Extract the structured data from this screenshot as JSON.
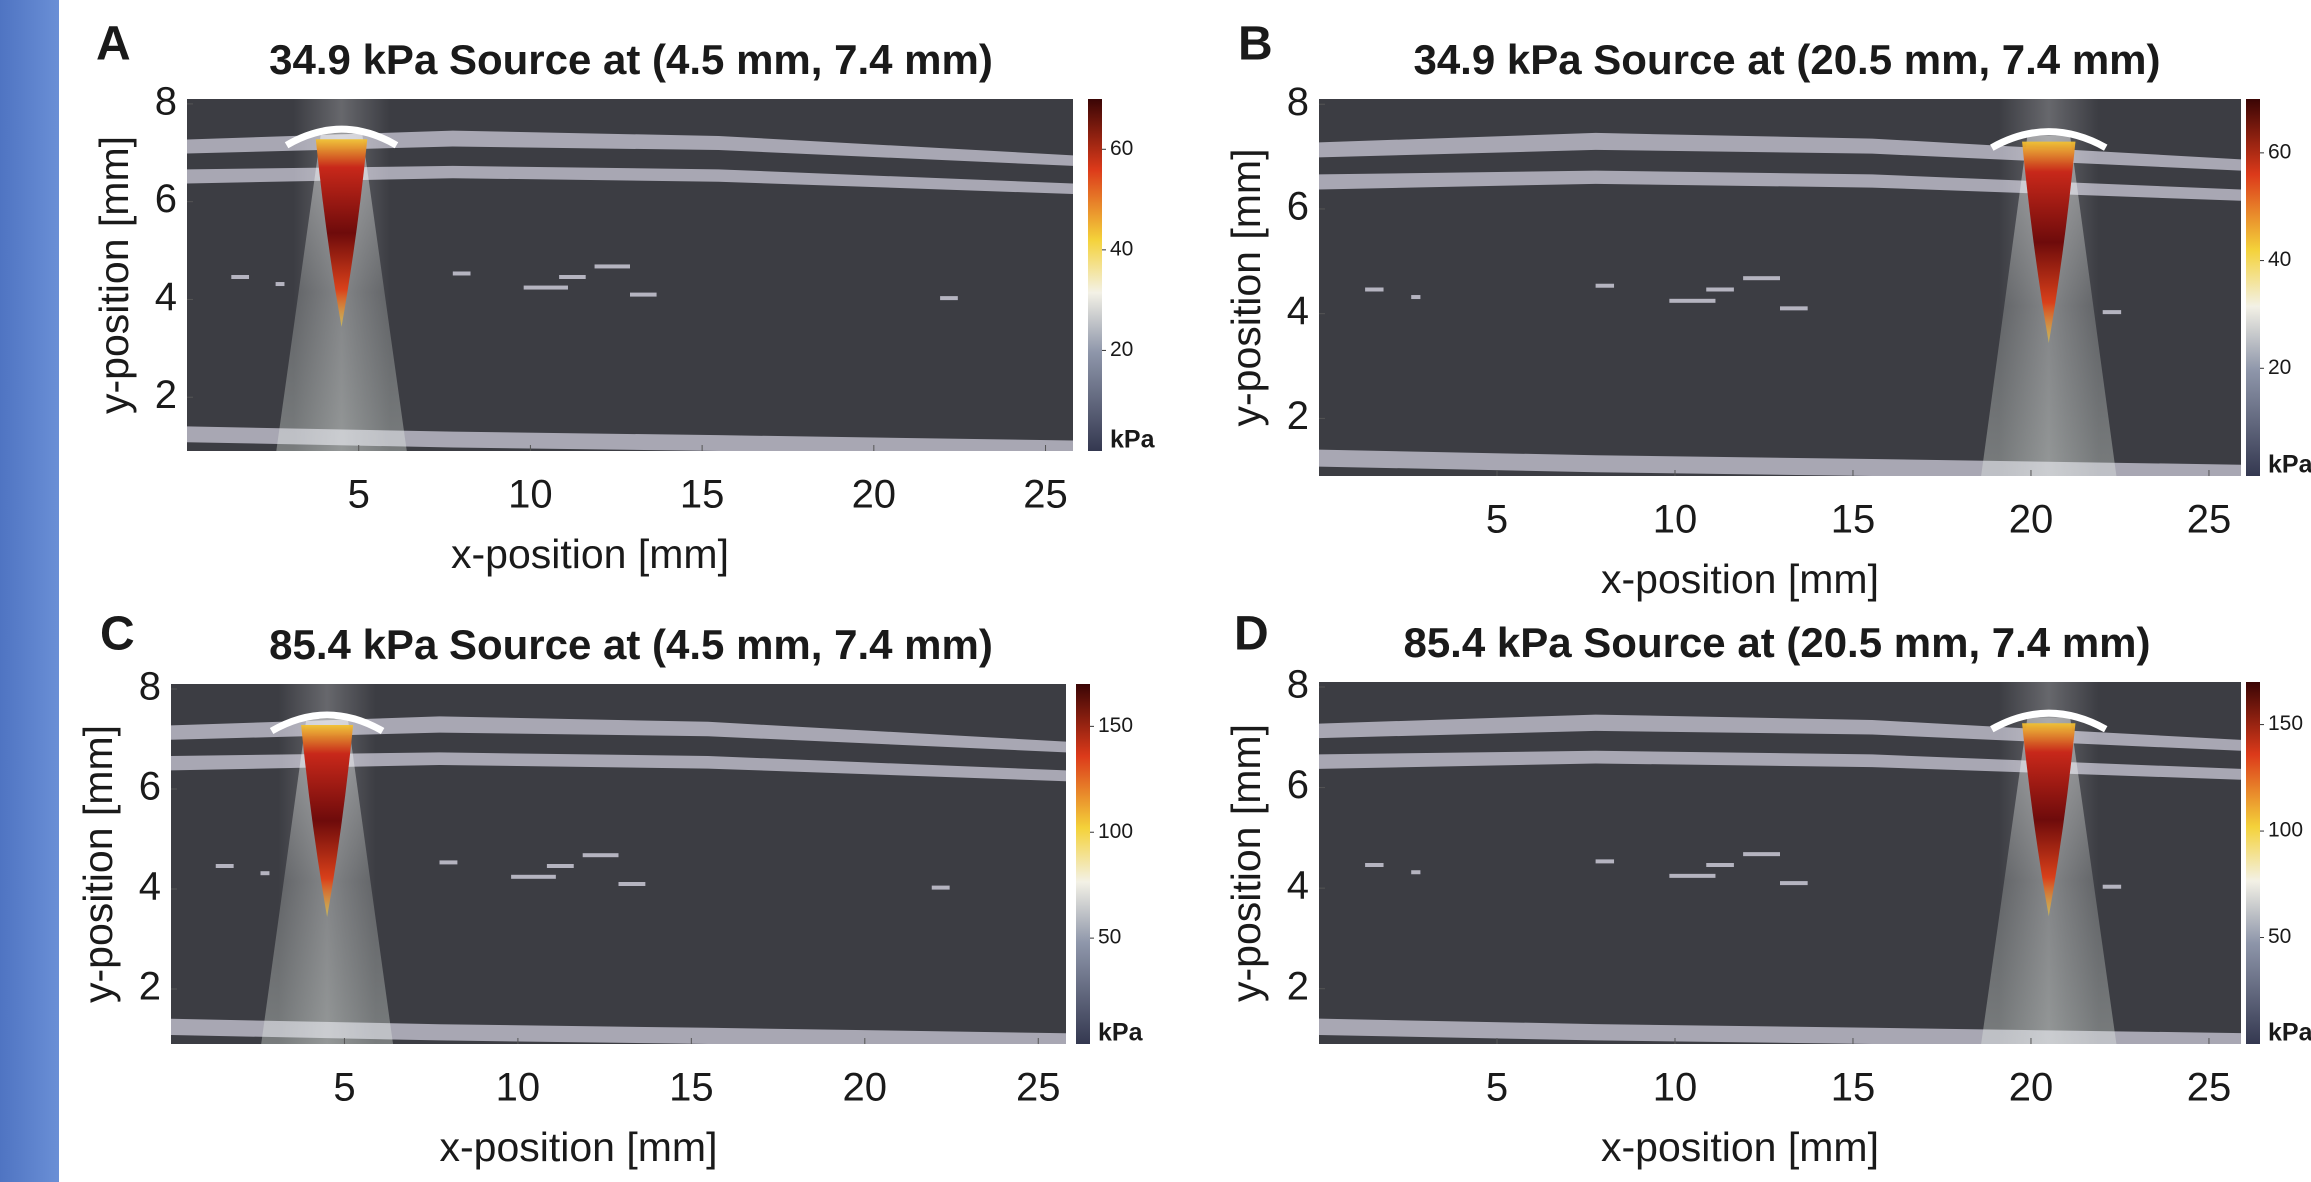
{
  "chart_data": [
    {
      "type": "heatmap",
      "panel": "A",
      "title": "34.9 kPa Source at (4.5 mm, 7.4 mm)",
      "source": [
        4.5,
        7.4
      ],
      "xlabel": "x-position [mm]",
      "ylabel": "y-position [mm]",
      "xlim": [
        0,
        25.8
      ],
      "ylim": [
        0.9,
        8.1
      ],
      "xticks": [
        5,
        10,
        15,
        20,
        25
      ],
      "yticks": [
        2,
        4,
        6,
        8
      ],
      "clim": [
        0,
        70
      ],
      "cticks": [
        20,
        40,
        60
      ],
      "colorbar_label": "kPa"
    },
    {
      "type": "heatmap",
      "panel": "B",
      "title": "34.9 kPa Source at (20.5 mm, 7.4 mm)",
      "source": [
        20.5,
        7.4
      ],
      "xlabel": "x-position [mm]",
      "ylabel": "y-position [mm]",
      "xlim": [
        0,
        25.9
      ],
      "ylim": [
        0.9,
        8.1
      ],
      "xticks": [
        5,
        10,
        15,
        20,
        25
      ],
      "yticks": [
        2,
        4,
        6,
        8
      ],
      "clim": [
        0,
        70
      ],
      "cticks": [
        20,
        40,
        60
      ],
      "colorbar_label": "kPa"
    },
    {
      "type": "heatmap",
      "panel": "C",
      "title": "85.4 kPa Source at (4.5 mm, 7.4 mm)",
      "source": [
        4.5,
        7.4
      ],
      "xlabel": "x-position [mm]",
      "ylabel": "y-position [mm]",
      "xlim": [
        0,
        25.8
      ],
      "ylim": [
        0.9,
        8.1
      ],
      "xticks": [
        5,
        10,
        15,
        20,
        25
      ],
      "yticks": [
        2,
        4,
        6,
        8
      ],
      "clim": [
        0,
        170
      ],
      "cticks": [
        50,
        100,
        150
      ],
      "colorbar_label": "kPa"
    },
    {
      "type": "heatmap",
      "panel": "D",
      "title": "85.4 kPa Source at (20.5 mm, 7.4 mm)",
      "source": [
        20.5,
        7.4
      ],
      "xlabel": "x-position [mm]",
      "ylabel": "y-position [mm]",
      "xlim": [
        0,
        25.9
      ],
      "ylim": [
        0.9,
        8.1
      ],
      "xticks": [
        5,
        10,
        15,
        20,
        25
      ],
      "yticks": [
        2,
        4,
        6,
        8
      ],
      "clim": [
        0,
        170
      ],
      "cticks": [
        50,
        100,
        150
      ],
      "colorbar_label": "kPa"
    }
  ]
}
